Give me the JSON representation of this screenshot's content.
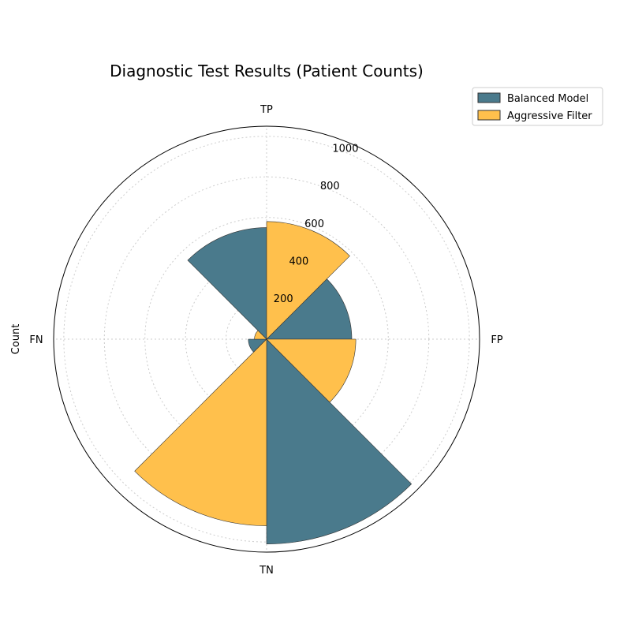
{
  "chart_data": {
    "type": "polar-bar",
    "title": "Diagnostic Test Results (Patient Counts)",
    "ylabel": "Count",
    "categories": [
      "TP",
      "FP",
      "TN",
      "FN"
    ],
    "radial_ticks": [
      200,
      400,
      600,
      800,
      1000
    ],
    "rlim": [
      0,
      1050
    ],
    "grid": true,
    "legend_position": "top-right",
    "series": [
      {
        "name": "Balanced Model",
        "color": "#4a7a8c",
        "values": [
          550,
          420,
          1010,
          90
        ]
      },
      {
        "name": "Aggressive Filter",
        "color": "#ffc04c",
        "values": [
          580,
          440,
          920,
          60
        ]
      }
    ]
  }
}
